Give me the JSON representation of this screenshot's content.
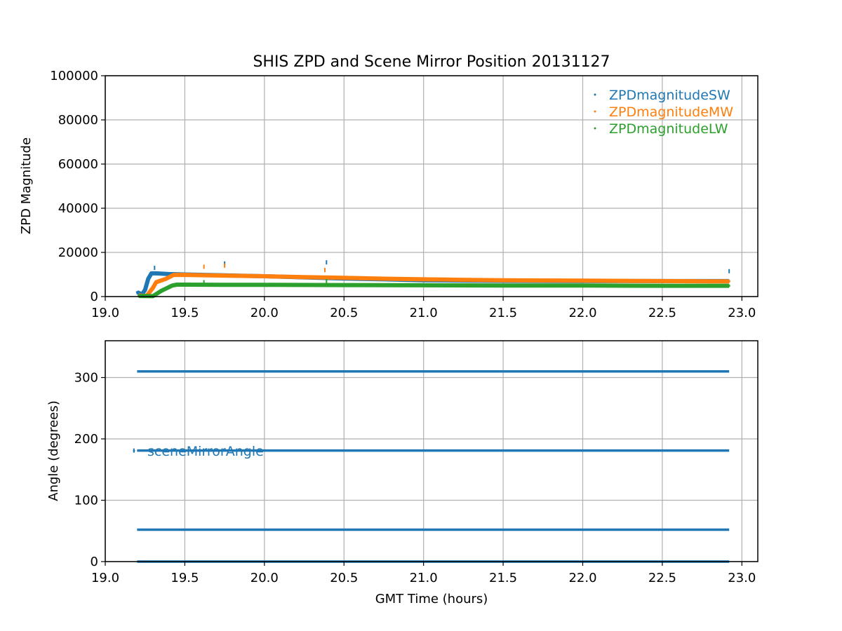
{
  "colors": {
    "ZPDmagnitudeSW": "#1f77b4",
    "ZPDmagnitudeMW": "#ff7f0e",
    "ZPDmagnitudeLW": "#2ca02c",
    "sceneMirrorAngle": "#1f77b4",
    "grid": "#b0b0b0"
  },
  "chart_data": [
    {
      "type": "scatter",
      "title": "SHIS ZPD and Scene Mirror Position 20131127",
      "xlabel": "",
      "ylabel": "ZPD Magnitude",
      "xlim": [
        19.0,
        23.1
      ],
      "ylim": [
        0,
        100000
      ],
      "xticks": [
        19.0,
        19.5,
        20.0,
        20.5,
        21.0,
        21.5,
        22.0,
        22.5,
        23.0
      ],
      "xtick_labels": [
        "19.0",
        "19.5",
        "20.0",
        "20.5",
        "21.0",
        "21.5",
        "22.0",
        "22.5",
        "23.0"
      ],
      "yticks": [
        0,
        20000,
        40000,
        60000,
        80000,
        100000
      ],
      "ytick_labels": [
        "0",
        "20000",
        "40000",
        "60000",
        "80000",
        "100000"
      ],
      "grid": true,
      "legend": "top-right",
      "series": [
        {
          "name": "ZPDmagnitudeSW",
          "color": "#1f77b4",
          "points": [
            [
              19.2,
              2000
            ],
            [
              19.23,
              1000
            ],
            [
              19.25,
              3000
            ],
            [
              19.27,
              8000
            ],
            [
              19.29,
              10500
            ],
            [
              19.32,
              10500
            ],
            [
              19.4,
              10200
            ],
            [
              19.5,
              10000
            ],
            [
              19.75,
              9600
            ],
            [
              20.0,
              9200
            ],
            [
              20.25,
              8700
            ],
            [
              20.5,
              8200
            ],
            [
              20.75,
              7800
            ],
            [
              21.0,
              7400
            ],
            [
              21.25,
              7200
            ],
            [
              21.5,
              7100
            ],
            [
              22.0,
              7000
            ],
            [
              22.5,
              7000
            ],
            [
              22.92,
              7000
            ]
          ],
          "outliers": [
            [
              19.31,
              13000
            ],
            [
              19.75,
              15000
            ],
            [
              20.39,
              15500
            ],
            [
              22.92,
              11500
            ]
          ]
        },
        {
          "name": "ZPDmagnitudeMW",
          "color": "#ff7f0e",
          "points": [
            [
              19.21,
              500
            ],
            [
              19.26,
              300
            ],
            [
              19.3,
              4000
            ],
            [
              19.32,
              6500
            ],
            [
              19.38,
              8000
            ],
            [
              19.43,
              9800
            ],
            [
              19.5,
              9800
            ],
            [
              19.75,
              9500
            ],
            [
              20.0,
              9200
            ],
            [
              20.25,
              8800
            ],
            [
              20.5,
              8500
            ],
            [
              20.75,
              8100
            ],
            [
              21.0,
              7800
            ],
            [
              21.25,
              7600
            ],
            [
              21.5,
              7400
            ],
            [
              22.0,
              7200
            ],
            [
              22.5,
              7000
            ],
            [
              22.92,
              6900
            ]
          ],
          "outliers": [
            [
              19.62,
              13500
            ],
            [
              19.75,
              14000
            ],
            [
              20.38,
              12000
            ]
          ]
        },
        {
          "name": "ZPDmagnitudeLW",
          "color": "#2ca02c",
          "points": [
            [
              19.21,
              300
            ],
            [
              19.3,
              200
            ],
            [
              19.35,
              2500
            ],
            [
              19.42,
              5000
            ],
            [
              19.45,
              5400
            ],
            [
              19.5,
              5400
            ],
            [
              19.75,
              5300
            ],
            [
              20.0,
              5300
            ],
            [
              20.5,
              5200
            ],
            [
              21.0,
              5100
            ],
            [
              21.5,
              5000
            ],
            [
              22.0,
              5000
            ],
            [
              22.5,
              4900
            ],
            [
              22.92,
              4900
            ]
          ],
          "outliers": [
            [
              19.62,
              6500
            ],
            [
              20.39,
              7000
            ]
          ]
        }
      ]
    },
    {
      "type": "scatter",
      "title": "",
      "xlabel": "GMT Time (hours)",
      "ylabel": "Angle (degrees)",
      "xlim": [
        19.0,
        23.1
      ],
      "ylim": [
        0,
        360
      ],
      "xticks": [
        19.0,
        19.5,
        20.0,
        20.5,
        21.0,
        21.5,
        22.0,
        22.5,
        23.0
      ],
      "xtick_labels": [
        "19.0",
        "19.5",
        "20.0",
        "20.5",
        "21.0",
        "21.5",
        "22.0",
        "22.5",
        "23.0"
      ],
      "yticks": [
        0,
        100,
        200,
        300
      ],
      "ytick_labels": [
        "0",
        "100",
        "200",
        "300"
      ],
      "grid": true,
      "legend": "center-left",
      "series": [
        {
          "name": "sceneMirrorAngle",
          "color": "#1f77b4",
          "levels": [
            0,
            52,
            181,
            310
          ],
          "x_range": [
            19.2,
            22.92
          ],
          "outliers": [
            [
              19.18,
              181
            ]
          ]
        }
      ]
    }
  ]
}
